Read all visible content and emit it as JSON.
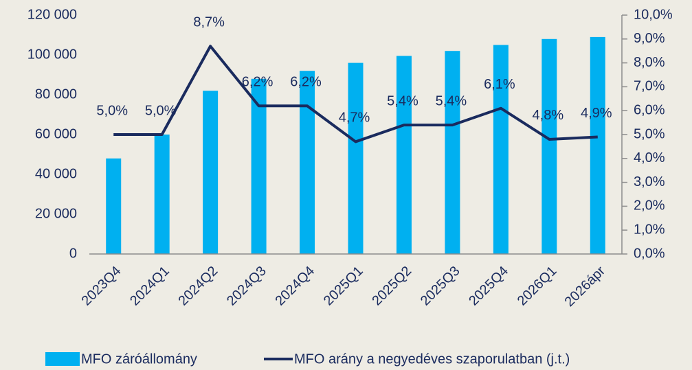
{
  "chart_data": {
    "type": "bar-line",
    "categories": [
      "2023Q4",
      "2024Q1",
      "2024Q2",
      "2024Q3",
      "2024Q4",
      "2025Q1",
      "2025Q2",
      "2025Q3",
      "2025Q4",
      "2026Q1",
      "2026ápr"
    ],
    "series": [
      {
        "name": "MFO záróállomány",
        "type": "bar",
        "color": "#00b0f0",
        "values": [
          48000,
          60000,
          82000,
          88000,
          92000,
          96000,
          99500,
          102000,
          105000,
          108000,
          109000
        ]
      },
      {
        "name": "MFO arány a negyedéves szaporulatban (j.t.)",
        "type": "line",
        "axis": "y2",
        "color": "#1a2b5e",
        "values": [
          5.0,
          5.0,
          8.7,
          6.2,
          6.2,
          4.7,
          5.4,
          5.4,
          6.1,
          4.8,
          4.9
        ],
        "value_labels": [
          "5,0%",
          "5,0%",
          "8,7%",
          "6,2%",
          "6,2%",
          "4,7%",
          "5,4%",
          "5,4%",
          "6,1%",
          "4,8%",
          "4,9%"
        ]
      }
    ],
    "ylim": [
      0,
      120000
    ],
    "yticks": [
      0,
      {
        "value": 20000,
        "label": "20 000"
      },
      {
        "value": 40000,
        "label": "40 000"
      },
      {
        "value": 60000,
        "label": "60 000"
      },
      {
        "value": 80000,
        "label": "80 000"
      },
      {
        "value": 100000,
        "label": "100 000"
      },
      {
        "value": 120000,
        "label": "120 000"
      }
    ],
    "y2lim": [
      0,
      10
    ],
    "y2ticks": [
      {
        "value": 0,
        "label": "0,0%"
      },
      {
        "value": 1,
        "label": "1,0%"
      },
      {
        "value": 2,
        "label": "2,0%"
      },
      {
        "value": 3,
        "label": "3,0%"
      },
      {
        "value": 4,
        "label": "4,0%"
      },
      {
        "value": 5,
        "label": "5,0%"
      },
      {
        "value": 6,
        "label": "6,0%"
      },
      {
        "value": 7,
        "label": "7,0%"
      },
      {
        "value": 8,
        "label": "8,0%"
      },
      {
        "value": 9,
        "label": "9,0%"
      },
      {
        "value": 10,
        "label": "10,0%"
      }
    ],
    "legend": "bottom"
  }
}
